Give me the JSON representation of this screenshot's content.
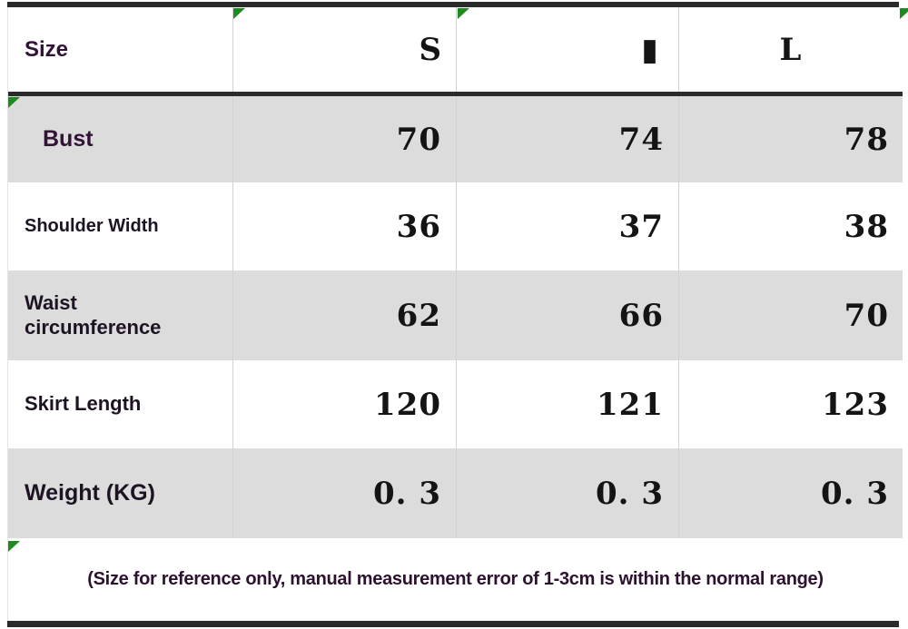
{
  "table": {
    "header": {
      "label": "Size",
      "sizes": [
        "S",
        "▮",
        "L"
      ]
    },
    "rows": [
      {
        "label": "Bust",
        "values": [
          "70",
          "74",
          "78"
        ]
      },
      {
        "label": "Shoulder Width",
        "values": [
          "36",
          "37",
          "38"
        ]
      },
      {
        "label": "Waist circumference",
        "values": [
          "62",
          "66",
          "70"
        ]
      },
      {
        "label": "Skirt Length",
        "values": [
          "120",
          "121",
          "123"
        ]
      },
      {
        "label": "Weight (KG)",
        "values": [
          "0. 3",
          "0. 3",
          "0. 3"
        ]
      }
    ],
    "footnote": "(Size for reference only, manual measurement error of 1-3cm is within the normal range)"
  },
  "colors": {
    "row_alt_bg": "#dcdcdc",
    "border_dark": "#2b2b2b",
    "marker_green": "#1f8a1f",
    "label_purple": "#321237",
    "label_dark": "#1d1322",
    "number_black": "#141414"
  },
  "icons": {
    "corner_marker": "green-corner-triangle"
  }
}
